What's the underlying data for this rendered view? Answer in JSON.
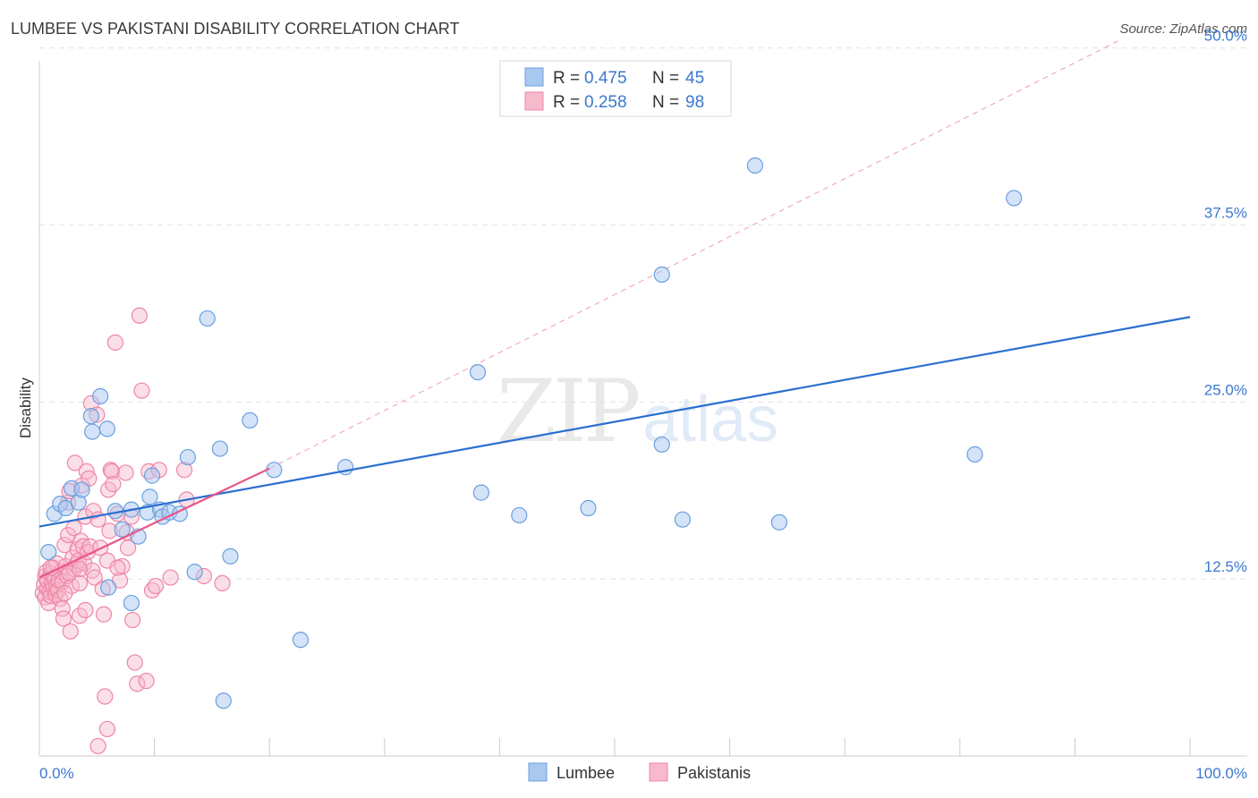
{
  "header": {
    "title": "LUMBEE VS PAKISTANI DISABILITY CORRELATION CHART",
    "source": "Source: ZipAtlas.com"
  },
  "watermark": {
    "zip": "ZIP",
    "atlas": "atlas"
  },
  "stats": [
    {
      "r_label": "R =",
      "r_value": "0.475",
      "n_label": "N =",
      "n_value": "45"
    },
    {
      "r_label": "R =",
      "r_value": "0.258",
      "n_label": "N =",
      "n_value": "98"
    }
  ],
  "colors": {
    "lumbee_fill": "#a9c8f0",
    "lumbee_stroke": "#6a9fe0",
    "lumbee_line": "#2a6fd0",
    "pak_fill": "#f7b9cc",
    "pak_stroke": "#ef86a6",
    "pak_line": "#e8578a",
    "axis_text": "#3b78d0",
    "grid": "#e3e3e3"
  },
  "chart_data": {
    "type": "scatter",
    "title": "LUMBEE VS PAKISTANI DISABILITY CORRELATION CHART",
    "xlabel": "",
    "ylabel": "Disability",
    "xlim": [
      0,
      100
    ],
    "ylim": [
      0,
      52
    ],
    "x_tick_labels": [
      "0.0%",
      "100.0%"
    ],
    "y_ticks": [
      12.5,
      25.0,
      37.5,
      50.0
    ],
    "y_tick_labels": [
      "12.5%",
      "25.0%",
      "37.5%",
      "50.0%"
    ],
    "legend": [
      "Lumbee",
      "Pakistanis"
    ],
    "series": [
      {
        "name": "Lumbee",
        "r": 0.475,
        "n": 45,
        "trend": {
          "x": [
            0,
            100
          ],
          "y": [
            16.2,
            31.0
          ]
        },
        "points": [
          [
            0.8,
            14.4
          ],
          [
            1.3,
            17.1
          ],
          [
            1.8,
            17.8
          ],
          [
            2.3,
            17.5
          ],
          [
            2.8,
            18.9
          ],
          [
            3.4,
            17.9
          ],
          [
            3.7,
            18.8
          ],
          [
            4.5,
            24.0
          ],
          [
            4.6,
            22.9
          ],
          [
            5.3,
            25.4
          ],
          [
            5.9,
            23.1
          ],
          [
            6.0,
            11.9
          ],
          [
            6.6,
            17.3
          ],
          [
            7.2,
            16.0
          ],
          [
            8.0,
            17.4
          ],
          [
            8.6,
            15.5
          ],
          [
            9.4,
            17.2
          ],
          [
            9.8,
            19.8
          ],
          [
            10.5,
            17.4
          ],
          [
            10.7,
            16.9
          ],
          [
            11.3,
            17.2
          ],
          [
            12.2,
            17.1
          ],
          [
            12.9,
            21.1
          ],
          [
            13.5,
            13.0
          ],
          [
            14.6,
            30.9
          ],
          [
            15.7,
            21.7
          ],
          [
            16.6,
            14.1
          ],
          [
            18.3,
            23.7
          ],
          [
            20.4,
            20.2
          ],
          [
            22.7,
            8.2
          ],
          [
            26.6,
            20.4
          ],
          [
            38.1,
            27.1
          ],
          [
            38.4,
            18.6
          ],
          [
            9.6,
            18.3
          ],
          [
            41.7,
            17.0
          ],
          [
            47.7,
            17.5
          ],
          [
            54.1,
            22.0
          ],
          [
            54.1,
            34.0
          ],
          [
            55.9,
            16.7
          ],
          [
            62.2,
            41.7
          ],
          [
            64.3,
            16.5
          ],
          [
            81.3,
            21.3
          ],
          [
            84.7,
            39.4
          ],
          [
            8.0,
            10.8
          ],
          [
            16.0,
            3.9
          ]
        ]
      },
      {
        "name": "Pakistanis",
        "r": 0.258,
        "n": 98,
        "trend": {
          "x": [
            0,
            20
          ],
          "y": [
            12.6,
            20.3
          ]
        },
        "trend_extended": {
          "x": [
            20,
            94
          ],
          "y": [
            20.3,
            50.6
          ]
        },
        "points": [
          [
            0.3,
            11.5
          ],
          [
            0.4,
            12.1
          ],
          [
            0.5,
            12.7
          ],
          [
            0.5,
            11.2
          ],
          [
            0.6,
            13.0
          ],
          [
            0.7,
            11.8
          ],
          [
            0.7,
            12.4
          ],
          [
            0.8,
            10.8
          ],
          [
            0.9,
            11.6
          ],
          [
            1.0,
            12.9
          ],
          [
            1.0,
            11.3
          ],
          [
            1.1,
            12.2
          ],
          [
            1.2,
            13.3
          ],
          [
            1.2,
            11.9
          ],
          [
            1.3,
            12.6
          ],
          [
            1.4,
            11.4
          ],
          [
            1.5,
            12.0
          ],
          [
            1.5,
            13.6
          ],
          [
            1.6,
            11.7
          ],
          [
            1.7,
            12.4
          ],
          [
            1.8,
            11.1
          ],
          [
            1.9,
            13.0
          ],
          [
            2.0,
            12.3
          ],
          [
            2.0,
            10.4
          ],
          [
            2.1,
            9.7
          ],
          [
            2.2,
            14.9
          ],
          [
            2.3,
            13.4
          ],
          [
            2.4,
            12.7
          ],
          [
            2.5,
            15.6
          ],
          [
            2.5,
            17.9
          ],
          [
            2.6,
            18.7
          ],
          [
            2.7,
            8.8
          ],
          [
            2.8,
            12.0
          ],
          [
            2.9,
            14.0
          ],
          [
            3.0,
            13.2
          ],
          [
            3.0,
            16.1
          ],
          [
            3.1,
            20.7
          ],
          [
            3.2,
            13.5
          ],
          [
            3.3,
            14.6
          ],
          [
            3.4,
            13.8
          ],
          [
            3.5,
            9.9
          ],
          [
            3.5,
            12.2
          ],
          [
            3.6,
            15.2
          ],
          [
            3.7,
            19.1
          ],
          [
            3.8,
            14.8
          ],
          [
            3.9,
            13.6
          ],
          [
            4.0,
            16.9
          ],
          [
            4.0,
            10.3
          ],
          [
            4.1,
            20.1
          ],
          [
            4.2,
            14.4
          ],
          [
            4.3,
            19.6
          ],
          [
            4.4,
            14.8
          ],
          [
            4.5,
            24.9
          ],
          [
            4.6,
            13.1
          ],
          [
            4.7,
            17.3
          ],
          [
            4.8,
            12.6
          ],
          [
            5.0,
            24.1
          ],
          [
            5.1,
            16.7
          ],
          [
            5.3,
            14.7
          ],
          [
            5.5,
            11.8
          ],
          [
            5.6,
            10.0
          ],
          [
            5.7,
            4.2
          ],
          [
            5.9,
            13.8
          ],
          [
            6.0,
            18.8
          ],
          [
            6.1,
            15.9
          ],
          [
            6.2,
            20.2
          ],
          [
            6.3,
            20.1
          ],
          [
            6.4,
            19.2
          ],
          [
            6.6,
            29.2
          ],
          [
            6.8,
            17.1
          ],
          [
            7.0,
            12.4
          ],
          [
            7.2,
            13.4
          ],
          [
            7.5,
            20.0
          ],
          [
            7.6,
            15.8
          ],
          [
            7.7,
            14.7
          ],
          [
            8.0,
            16.9
          ],
          [
            8.3,
            6.6
          ],
          [
            8.5,
            5.1
          ],
          [
            8.7,
            31.1
          ],
          [
            8.9,
            25.8
          ],
          [
            9.3,
            5.3
          ],
          [
            9.5,
            20.1
          ],
          [
            9.8,
            11.7
          ],
          [
            10.1,
            12.0
          ],
          [
            10.4,
            20.2
          ],
          [
            11.4,
            12.6
          ],
          [
            12.6,
            20.2
          ],
          [
            12.8,
            18.1
          ],
          [
            14.3,
            12.7
          ],
          [
            15.9,
            12.2
          ],
          [
            5.9,
            1.9
          ],
          [
            5.1,
            0.7
          ],
          [
            8.1,
            9.6
          ],
          [
            2.6,
            12.9
          ],
          [
            3.5,
            13.2
          ],
          [
            6.8,
            13.3
          ],
          [
            1.0,
            13.3
          ],
          [
            2.2,
            11.5
          ]
        ]
      }
    ]
  }
}
